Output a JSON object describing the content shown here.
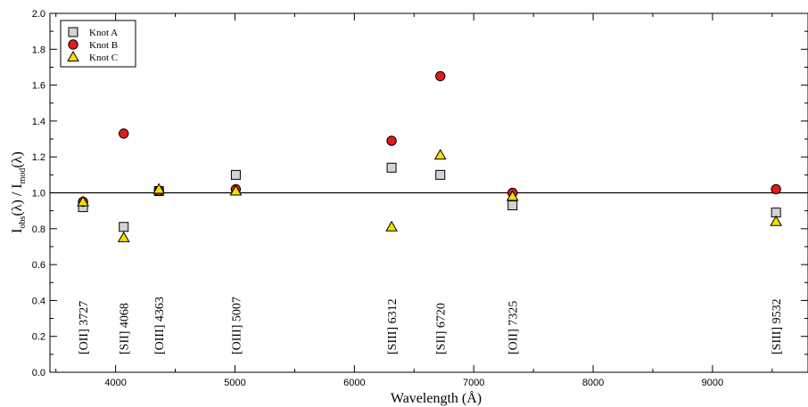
{
  "chart_data": {
    "type": "scatter",
    "xlabel": "Wavelength  (Å)",
    "ylabel": {
      "base": "I",
      "sub1": "obs",
      "mid": "(λ) / I",
      "sub2": "mod",
      "end": "(λ)"
    },
    "xlim": [
      3450,
      9800
    ],
    "ylim": [
      0.0,
      2.0
    ],
    "x_ticks": [
      4000,
      5000,
      6000,
      7000,
      8000,
      9000
    ],
    "y_ticks": [
      0.0,
      0.2,
      0.4,
      0.6,
      0.8,
      1.0,
      1.2,
      1.4,
      1.6,
      1.8,
      2.0
    ],
    "y_tick_labels": [
      "0.0",
      "0.2",
      "0.4",
      "0.6",
      "0.8",
      "1.0",
      "1.2",
      "1.4",
      "1.6",
      "1.8",
      "2.0"
    ],
    "reference_line": 1.0,
    "line_labels": [
      {
        "x": 3727,
        "label": "[OII] 3727"
      },
      {
        "x": 4068,
        "label": "[SII] 4068"
      },
      {
        "x": 4363,
        "label": "[OIII] 4363"
      },
      {
        "x": 5007,
        "label": "[OIII] 5007"
      },
      {
        "x": 6312,
        "label": "[SIII] 6312"
      },
      {
        "x": 6720,
        "label": "[SII] 6720"
      },
      {
        "x": 7325,
        "label": "[OII] 7325"
      },
      {
        "x": 9532,
        "label": "[SIII] 9532"
      }
    ],
    "legend_position": "top-left",
    "series": [
      {
        "name": "Knot A",
        "marker": "square",
        "color": "#d3d3d3",
        "points": [
          [
            3727,
            0.92
          ],
          [
            4068,
            0.81
          ],
          [
            4363,
            1.01
          ],
          [
            5007,
            1.1
          ],
          [
            6312,
            1.14
          ],
          [
            6720,
            1.1
          ],
          [
            7325,
            0.93
          ],
          [
            9532,
            0.89
          ]
        ]
      },
      {
        "name": "Knot B",
        "marker": "circle",
        "color": "#e01b1b",
        "points": [
          [
            3727,
            0.95
          ],
          [
            4068,
            1.33
          ],
          [
            4363,
            1.01
          ],
          [
            5007,
            1.02
          ],
          [
            6312,
            1.29
          ],
          [
            6720,
            1.65
          ],
          [
            7325,
            1.0
          ],
          [
            9532,
            1.02
          ]
        ]
      },
      {
        "name": "Knot C",
        "marker": "triangle",
        "color": "#f0e000",
        "points": [
          [
            3727,
            0.95
          ],
          [
            4068,
            0.75
          ],
          [
            4363,
            1.02
          ],
          [
            5007,
            1.01
          ],
          [
            6312,
            0.81
          ],
          [
            6720,
            1.21
          ],
          [
            7325,
            0.98
          ],
          [
            9532,
            0.84
          ]
        ]
      }
    ]
  }
}
